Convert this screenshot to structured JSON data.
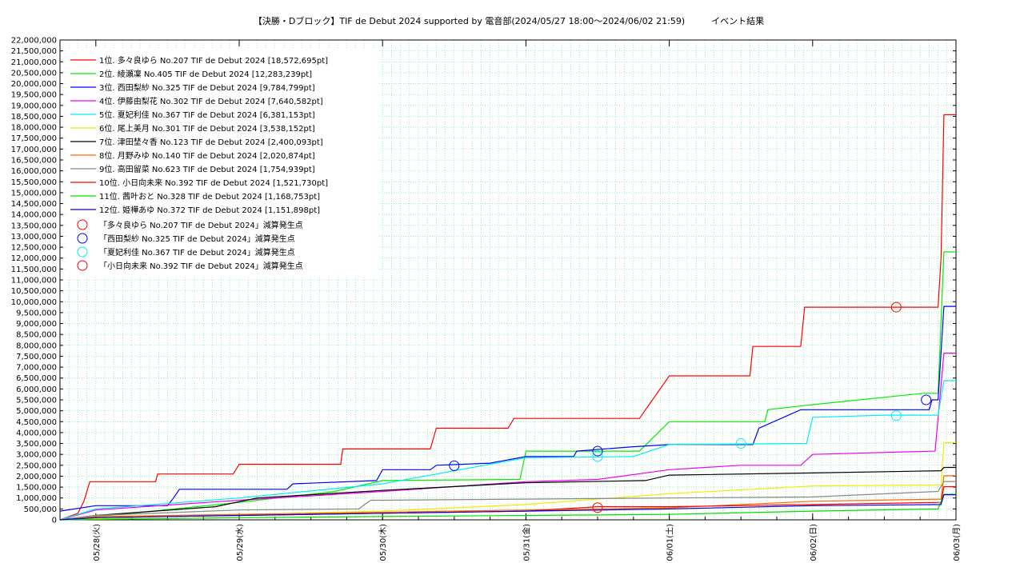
{
  "chart_data": {
    "type": "line",
    "title": "【決勝・Dブロック】TIF de Debut 2024 supported by 電音部(2024/05/27 18:00～2024/06/02 21:59)　　　イベント結果",
    "grid": true,
    "legend_position": "top-left",
    "ylim": [
      0,
      22000000
    ],
    "y_ticks": [
      "0",
      "500,000",
      "1,000,000",
      "1,500,000",
      "2,000,000",
      "2,500,000",
      "3,000,000",
      "3,500,000",
      "4,000,000",
      "4,500,000",
      "5,000,000",
      "5,500,000",
      "6,000,000",
      "6,500,000",
      "7,000,000",
      "7,500,000",
      "8,000,000",
      "8,500,000",
      "9,000,000",
      "9,500,000",
      "10,000,000",
      "10,500,000",
      "11,000,000",
      "11,500,000",
      "12,000,000",
      "12,500,000",
      "13,000,000",
      "13,500,000",
      "14,000,000",
      "14,500,000",
      "15,000,000",
      "15,500,000",
      "16,000,000",
      "16,500,000",
      "17,000,000",
      "17,500,000",
      "18,000,000",
      "18,500,000",
      "19,000,000",
      "19,500,000",
      "20,000,000",
      "20,500,000",
      "21,000,000",
      "21,500,000",
      "22,000,000"
    ],
    "xlim": [
      "2024-05-27 18:00",
      "2024-06-03 00:00"
    ],
    "x_ticks": [
      {
        "time": "2024-05-28 00:00",
        "label": "05/28(火)"
      },
      {
        "time": "2024-05-29 00:00",
        "label": "05/29(水)"
      },
      {
        "time": "2024-05-30 00:00",
        "label": "05/30(木)"
      },
      {
        "time": "2024-05-31 00:00",
        "label": "05/31(金)"
      },
      {
        "time": "2024-06-01 00:00",
        "label": "06/01(土)"
      },
      {
        "time": "2024-06-02 00:00",
        "label": "06/02(日)"
      },
      {
        "time": "2024-06-03 00:00",
        "label": "06/03(月)"
      }
    ],
    "series": [
      {
        "name": "1位. 多々良ゆら No.207 TIF de Debut 2024 [18,572,695pt]",
        "color": "#ff0000",
        "points": [
          [
            "2024-05-27 18:00",
            0
          ],
          [
            "2024-05-27 21:00",
            300000
          ],
          [
            "2024-05-27 22:00",
            850000
          ],
          [
            "2024-05-27 23:00",
            1750000
          ],
          [
            "2024-05-28 10:00",
            1750000
          ],
          [
            "2024-05-28 10:20",
            2100000
          ],
          [
            "2024-05-28 23:00",
            2100000
          ],
          [
            "2024-05-29 00:00",
            2550000
          ],
          [
            "2024-05-29 17:00",
            2550000
          ],
          [
            "2024-05-29 17:20",
            3250000
          ],
          [
            "2024-05-30 08:00",
            3250000
          ],
          [
            "2024-05-30 09:00",
            4200000
          ],
          [
            "2024-05-30 21:00",
            4200000
          ],
          [
            "2024-05-30 22:00",
            4650000
          ],
          [
            "2024-05-31 19:00",
            4650000
          ],
          [
            "2024-06-01 00:00",
            6600000
          ],
          [
            "2024-06-01 13:30",
            6600000
          ],
          [
            "2024-06-01 14:00",
            7950000
          ],
          [
            "2024-06-01 22:00",
            7950000
          ],
          [
            "2024-06-01 22:40",
            9750000
          ],
          [
            "2024-06-02 21:00",
            9750000
          ],
          [
            "2024-06-02 21:30",
            12000000
          ],
          [
            "2024-06-02 21:59",
            18572695
          ],
          [
            "2024-06-03 00:00",
            18572695
          ]
        ]
      },
      {
        "name": "2位. 綾瀬凜 No.405 TIF de Debut 2024 [12,283,239pt]",
        "color": "#00ee00",
        "points": [
          [
            "2024-05-27 18:00",
            0
          ],
          [
            "2024-05-28 06:00",
            300000
          ],
          [
            "2024-05-29 00:00",
            800000
          ],
          [
            "2024-05-29 16:00",
            1300000
          ],
          [
            "2024-05-30 00:00",
            1800000
          ],
          [
            "2024-05-30 23:00",
            1850000
          ],
          [
            "2024-05-31 00:00",
            3150000
          ],
          [
            "2024-05-31 19:00",
            3150000
          ],
          [
            "2024-06-01 00:00",
            4500000
          ],
          [
            "2024-06-01 16:00",
            4500000
          ],
          [
            "2024-06-01 16:30",
            5050000
          ],
          [
            "2024-06-01 23:00",
            5250000
          ],
          [
            "2024-06-02 18:30",
            5800000
          ],
          [
            "2024-06-02 21:00",
            5800000
          ],
          [
            "2024-06-02 21:59",
            12283239
          ],
          [
            "2024-06-03 00:00",
            12283239
          ]
        ]
      },
      {
        "name": "3位. 西田梨紗 No.325 TIF de Debut 2024 [9,784,799pt]",
        "color": "#0000ff",
        "points": [
          [
            "2024-05-27 18:00",
            400000
          ],
          [
            "2024-05-28 00:00",
            650000
          ],
          [
            "2024-05-28 12:00",
            650000
          ],
          [
            "2024-05-28 13:00",
            1000000
          ],
          [
            "2024-05-28 14:00",
            1400000
          ],
          [
            "2024-05-29 08:00",
            1400000
          ],
          [
            "2024-05-29 09:00",
            1650000
          ],
          [
            "2024-05-29 23:00",
            1800000
          ],
          [
            "2024-05-30 00:00",
            2300000
          ],
          [
            "2024-05-30 08:00",
            2300000
          ],
          [
            "2024-05-30 09:00",
            2500000
          ],
          [
            "2024-05-30 18:00",
            2600000
          ],
          [
            "2024-05-31 00:00",
            2900000
          ],
          [
            "2024-05-31 08:00",
            2900000
          ],
          [
            "2024-05-31 08:30",
            3150000
          ],
          [
            "2024-05-31 18:00",
            3350000
          ],
          [
            "2024-06-01 00:00",
            3450000
          ],
          [
            "2024-06-01 14:00",
            3450000
          ],
          [
            "2024-06-01 15:00",
            4200000
          ],
          [
            "2024-06-01 22:00",
            5050000
          ],
          [
            "2024-06-02 19:30",
            5050000
          ],
          [
            "2024-06-02 20:00",
            5500000
          ],
          [
            "2024-06-02 21:00",
            5500000
          ],
          [
            "2024-06-02 21:59",
            9784799
          ],
          [
            "2024-06-03 00:00",
            9784799
          ]
        ]
      },
      {
        "name": "4位. 伊藤由梨花 No.302 TIF de Debut 2024 [7,640,582pt]",
        "color": "#ee00ee",
        "points": [
          [
            "2024-05-27 18:00",
            0
          ],
          [
            "2024-05-28 00:00",
            450000
          ],
          [
            "2024-05-29 00:00",
            900000
          ],
          [
            "2024-05-30 00:00",
            1300000
          ],
          [
            "2024-05-31 00:00",
            1750000
          ],
          [
            "2024-05-31 12:00",
            1850000
          ],
          [
            "2024-06-01 00:00",
            2300000
          ],
          [
            "2024-06-01 12:00",
            2500000
          ],
          [
            "2024-06-01 22:00",
            2500000
          ],
          [
            "2024-06-02 00:00",
            3000000
          ],
          [
            "2024-06-02 20:30",
            3150000
          ],
          [
            "2024-06-02 21:59",
            7640582
          ],
          [
            "2024-06-03 00:00",
            7640582
          ]
        ]
      },
      {
        "name": "5位. 夏妃利佳 No.367 TIF de Debut 2024 [6,381,153pt]",
        "color": "#00eeee",
        "points": [
          [
            "2024-05-27 18:00",
            0
          ],
          [
            "2024-05-28 00:00",
            500000
          ],
          [
            "2024-05-29 00:00",
            1000000
          ],
          [
            "2024-05-30 00:00",
            1650000
          ],
          [
            "2024-05-31 00:00",
            2850000
          ],
          [
            "2024-05-31 18:00",
            2900000
          ],
          [
            "2024-06-01 00:00",
            3450000
          ],
          [
            "2024-06-01 23:00",
            3500000
          ],
          [
            "2024-06-02 00:00",
            4700000
          ],
          [
            "2024-06-02 12:00",
            4800000
          ],
          [
            "2024-06-02 21:00",
            4800000
          ],
          [
            "2024-06-02 21:59",
            6381153
          ],
          [
            "2024-06-03 00:00",
            6381153
          ]
        ]
      },
      {
        "name": "6位. 尾上美月 No.301 TIF de Debut 2024 [3,538,152pt]",
        "color": "#eeee00",
        "points": [
          [
            "2024-05-27 18:00",
            0
          ],
          [
            "2024-05-29 00:00",
            250000
          ],
          [
            "2024-05-30 00:00",
            400000
          ],
          [
            "2024-05-31 00:00",
            700000
          ],
          [
            "2024-06-01 00:00",
            1200000
          ],
          [
            "2024-06-02 00:00",
            1550000
          ],
          [
            "2024-06-02 21:30",
            1600000
          ],
          [
            "2024-06-02 21:59",
            3538152
          ],
          [
            "2024-06-03 00:00",
            3538152
          ]
        ]
      },
      {
        "name": "7位. 津田埜々香 No.123 TIF de Debut 2024 [2,400,093pt]",
        "color": "#000000",
        "points": [
          [
            "2024-05-27 18:00",
            0
          ],
          [
            "2024-05-28 00:00",
            200000
          ],
          [
            "2024-05-28 20:00",
            600000
          ],
          [
            "2024-05-29 03:00",
            1000000
          ],
          [
            "2024-05-30 00:00",
            1350000
          ],
          [
            "2024-05-31 00:00",
            1700000
          ],
          [
            "2024-05-31 20:00",
            1800000
          ],
          [
            "2024-06-01 00:00",
            2050000
          ],
          [
            "2024-06-02 00:00",
            2150000
          ],
          [
            "2024-06-02 21:30",
            2250000
          ],
          [
            "2024-06-02 21:59",
            2400093
          ],
          [
            "2024-06-03 00:00",
            2400093
          ]
        ]
      },
      {
        "name": "8位. 月野みゆ No.140 TIF de Debut 2024 [2,020,874pt]",
        "color": "#ff6600",
        "points": [
          [
            "2024-05-27 18:00",
            0
          ],
          [
            "2024-05-28 00:00",
            150000
          ],
          [
            "2024-05-29 00:00",
            250000
          ],
          [
            "2024-05-30 00:00",
            350000
          ],
          [
            "2024-05-31 00:00",
            450000
          ],
          [
            "2024-06-01 00:00",
            550000
          ],
          [
            "2024-06-02 00:00",
            850000
          ],
          [
            "2024-06-02 21:30",
            950000
          ],
          [
            "2024-06-02 21:59",
            2020874
          ],
          [
            "2024-06-03 00:00",
            2020874
          ]
        ]
      },
      {
        "name": "9位. 高田留菜 No.623 TIF de Debut 2024 [1,754,939pt]",
        "color": "#888888",
        "points": [
          [
            "2024-05-27 18:00",
            0
          ],
          [
            "2024-05-28 00:00",
            200000
          ],
          [
            "2024-05-29 00:00",
            450000
          ],
          [
            "2024-05-29 20:00",
            500000
          ],
          [
            "2024-05-29 22:00",
            900000
          ],
          [
            "2024-05-30 00:00",
            900000
          ],
          [
            "2024-05-31 00:00",
            950000
          ],
          [
            "2024-06-01 00:00",
            1000000
          ],
          [
            "2024-06-02 00:00",
            1050000
          ],
          [
            "2024-06-02 21:00",
            1300000
          ],
          [
            "2024-06-02 21:59",
            1754939
          ],
          [
            "2024-06-03 00:00",
            1754939
          ]
        ]
      },
      {
        "name": "10位. 小日向未来 No.392 TIF de Debut 2024 [1,521,730pt]",
        "color": "#ff0000",
        "points": [
          [
            "2024-05-27 18:00",
            0
          ],
          [
            "2024-05-28 00:00",
            100000
          ],
          [
            "2024-05-29 00:00",
            200000
          ],
          [
            "2024-05-30 00:00",
            300000
          ],
          [
            "2024-05-31 00:00",
            400000
          ],
          [
            "2024-05-31 12:00",
            600000
          ],
          [
            "2024-06-01 00:00",
            600000
          ],
          [
            "2024-06-02 00:00",
            700000
          ],
          [
            "2024-06-02 21:30",
            800000
          ],
          [
            "2024-06-02 21:59",
            1521730
          ],
          [
            "2024-06-03 00:00",
            1521730
          ]
        ]
      },
      {
        "name": "11位. 茜叶おと No.328 TIF de Debut 2024 [1,168,753pt]",
        "color": "#00dd00",
        "points": [
          [
            "2024-05-27 18:00",
            0
          ],
          [
            "2024-05-29 00:00",
            100000
          ],
          [
            "2024-05-30 00:00",
            150000
          ],
          [
            "2024-05-31 00:00",
            200000
          ],
          [
            "2024-06-01 00:00",
            250000
          ],
          [
            "2024-06-02 00:00",
            400000
          ],
          [
            "2024-06-02 21:00",
            500000
          ],
          [
            "2024-06-02 21:59",
            1168753
          ],
          [
            "2024-06-03 00:00",
            1168753
          ]
        ]
      },
      {
        "name": "12位. 姫樺あゆ No.372 TIF de Debut 2024 [1,151,898pt]",
        "color": "#0000dd",
        "points": [
          [
            "2024-05-27 18:00",
            0
          ],
          [
            "2024-05-28 00:00",
            100000
          ],
          [
            "2024-05-29 00:00",
            200000
          ],
          [
            "2024-05-30 00:00",
            300000
          ],
          [
            "2024-05-31 00:00",
            400000
          ],
          [
            "2024-06-01 00:00",
            500000
          ],
          [
            "2024-06-02 00:00",
            650000
          ],
          [
            "2024-06-02 21:30",
            700000
          ],
          [
            "2024-06-02 21:59",
            1151898
          ],
          [
            "2024-06-03 00:00",
            1151898
          ]
        ]
      }
    ],
    "markers": [
      {
        "name": "「多々良ゆら No.207 TIF de Debut 2024」減算発生点",
        "color": "#ff0000",
        "points": [
          [
            "2024-06-02 14:00",
            9750000
          ]
        ]
      },
      {
        "name": "「西田梨紗 No.325 TIF de Debut 2024」減算発生点",
        "color": "#0000ff",
        "points": [
          [
            "2024-05-30 12:00",
            2480000
          ],
          [
            "2024-05-31 12:00",
            3150000
          ],
          [
            "2024-06-02 19:00",
            5500000
          ]
        ]
      },
      {
        "name": "「夏妃利佳 No.367 TIF de Debut 2024」減算発生点",
        "color": "#00eeee",
        "points": [
          [
            "2024-05-31 12:00",
            2900000
          ],
          [
            "2024-06-01 12:00",
            3500000
          ],
          [
            "2024-06-02 14:00",
            4780000
          ]
        ]
      },
      {
        "name": "「小日向未来 No.392 TIF de Debut 2024」減算発生点",
        "color": "#ff0000",
        "points": [
          [
            "2024-05-31 12:00",
            560000
          ]
        ]
      }
    ]
  }
}
